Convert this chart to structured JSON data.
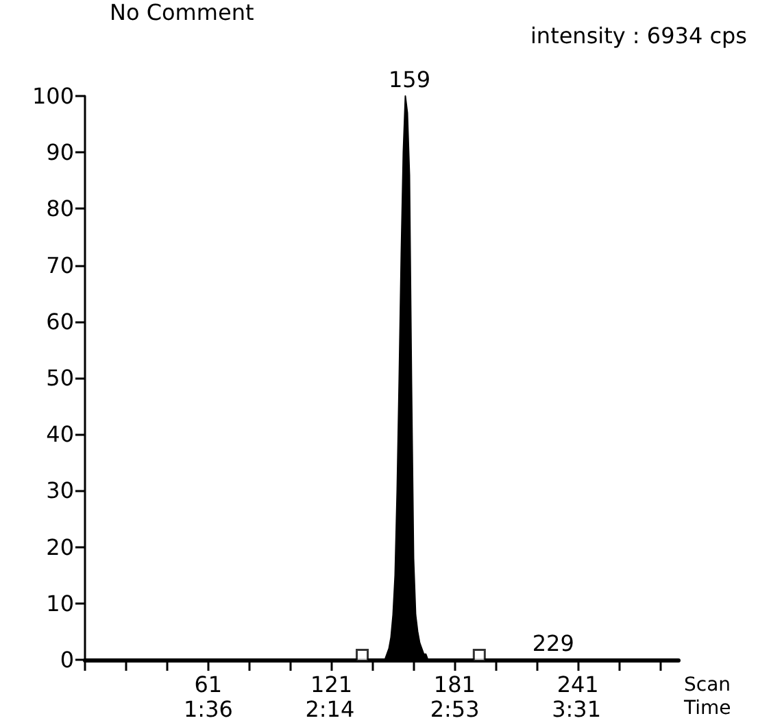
{
  "chart_data": {
    "type": "area",
    "xlabel": "Scan\nTime",
    "annotations": [
      "No Comment",
      "intensity : 6934 cps",
      {
        "text": "159",
        "x": 159,
        "y": 100
      },
      {
        "text": "229",
        "x": 229,
        "y": 0
      }
    ],
    "xlim": [
      1,
      290
    ],
    "ylim": [
      0,
      100
    ],
    "xticks": [
      {
        "value": 1,
        "label": null
      },
      {
        "value": 21,
        "label": null
      },
      {
        "value": 41,
        "label": null
      },
      61,
      {
        "value": 81,
        "label": null
      },
      {
        "value": 101,
        "label": null
      },
      121,
      {
        "value": 141,
        "label": null
      },
      {
        "value": 161,
        "label": null
      },
      181,
      {
        "value": 201,
        "label": null
      },
      {
        "value": 221,
        "label": null
      },
      241,
      {
        "value": 261,
        "label": null
      },
      {
        "value": 281,
        "label": null
      }
    ],
    "x2lim": [
      0.958,
      4.048
    ],
    "x2ticks": [
      {
        "value": 1.6,
        "label": "1:36"
      },
      {
        "value": 2.2333,
        "label": "2:14"
      },
      {
        "value": 2.8833,
        "label": "2:53"
      },
      {
        "value": 3.5167,
        "label": "3:31"
      }
    ],
    "yticks": [
      0,
      10,
      20,
      30,
      40,
      50,
      60,
      70,
      80,
      90,
      100
    ],
    "grid": false,
    "series": [
      {
        "color": "#000000",
        "x": [
          1,
          147,
          148,
          149,
          150,
          151,
          152,
          153,
          154,
          155,
          156,
          157,
          158,
          159,
          160,
          161,
          162,
          163,
          164,
          165,
          166,
          167,
          168,
          169,
          170,
          290
        ],
        "values": [
          0,
          0,
          1,
          2,
          4,
          8,
          15,
          30,
          50,
          72,
          90,
          100,
          97,
          86,
          49,
          18,
          8,
          5,
          3,
          2,
          1,
          1,
          0,
          0,
          0,
          0
        ]
      },
      {
        "type": "scatter",
        "color": "#000000",
        "marker": "square",
        "x": [
          136,
          193
        ],
        "values": [
          0.8,
          0.8
        ]
      }
    ]
  }
}
